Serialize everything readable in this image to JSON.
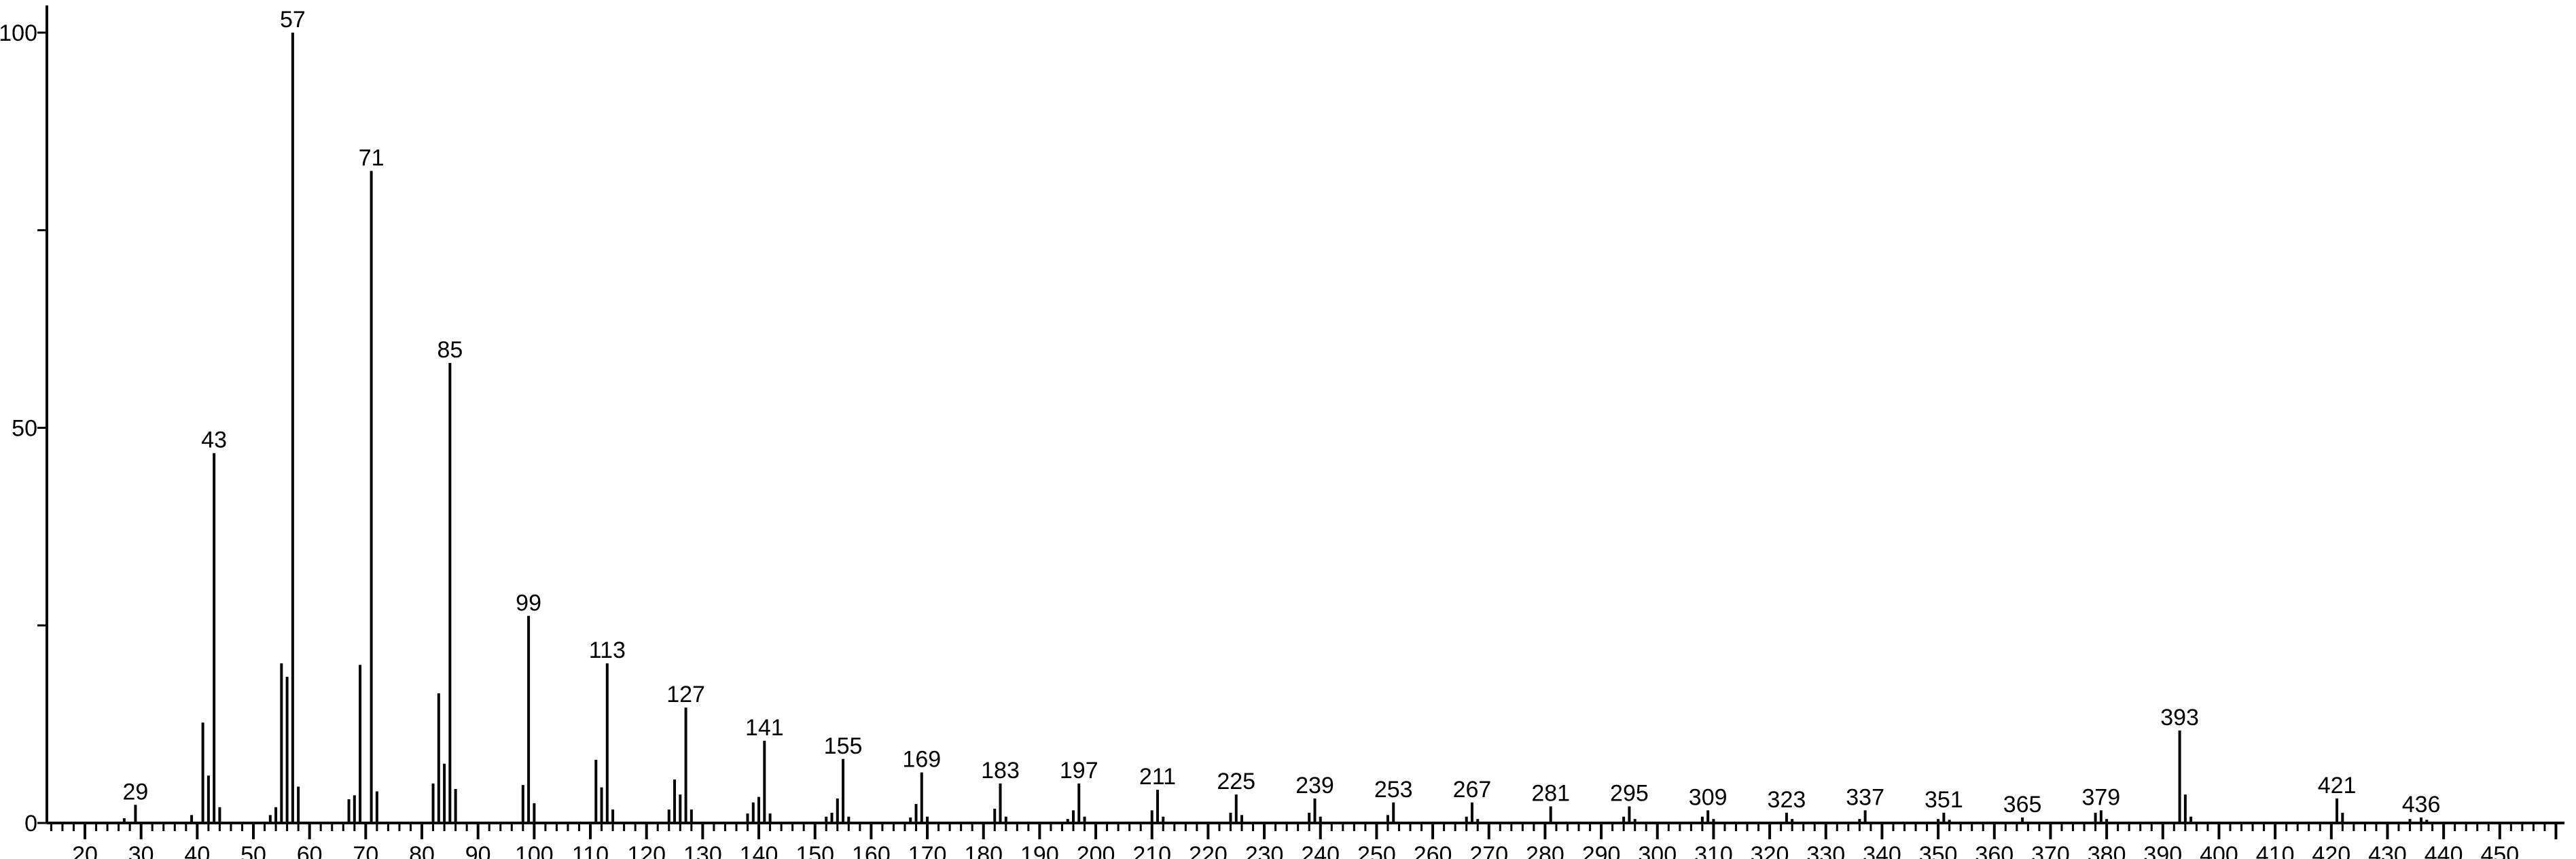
{
  "chart_data": {
    "type": "bar",
    "title": "",
    "xlabel": "",
    "ylabel": "",
    "xlim": [
      12,
      460
    ],
    "ylim": [
      0,
      100
    ],
    "x_ticks": [
      20,
      30,
      40,
      50,
      60,
      70,
      80,
      90,
      100,
      110,
      120,
      130,
      140,
      150,
      160,
      170,
      180,
      190,
      200,
      210,
      220,
      230,
      240,
      250,
      260,
      270,
      280,
      290,
      300,
      310,
      320,
      330,
      340,
      350,
      360,
      370,
      380,
      390,
      400,
      410,
      420,
      430,
      440,
      450
    ],
    "x_minor_step": 2,
    "y_ticks": [
      0,
      25,
      50,
      75,
      100
    ],
    "y_tick_labels": [
      "0",
      "",
      "50",
      "",
      "100"
    ],
    "grid": false,
    "bar_color": "#000000",
    "peaks": [
      {
        "mz": 27,
        "intensity": 0.6
      },
      {
        "mz": 29,
        "intensity": 2.3,
        "label": "29"
      },
      {
        "mz": 39,
        "intensity": 1.0
      },
      {
        "mz": 41,
        "intensity": 12.7
      },
      {
        "mz": 42,
        "intensity": 6.0
      },
      {
        "mz": 43,
        "intensity": 46.8,
        "label": "43"
      },
      {
        "mz": 44,
        "intensity": 2.0
      },
      {
        "mz": 53,
        "intensity": 1.0
      },
      {
        "mz": 54,
        "intensity": 2.0
      },
      {
        "mz": 55,
        "intensity": 20.2
      },
      {
        "mz": 56,
        "intensity": 18.5
      },
      {
        "mz": 57,
        "intensity": 100,
        "label": "57"
      },
      {
        "mz": 58,
        "intensity": 4.6
      },
      {
        "mz": 67,
        "intensity": 3.0
      },
      {
        "mz": 68,
        "intensity": 3.5
      },
      {
        "mz": 69,
        "intensity": 20.0
      },
      {
        "mz": 71,
        "intensity": 82.5,
        "label": "71"
      },
      {
        "mz": 72,
        "intensity": 4.0
      },
      {
        "mz": 82,
        "intensity": 5.0
      },
      {
        "mz": 83,
        "intensity": 16.4
      },
      {
        "mz": 84,
        "intensity": 7.5
      },
      {
        "mz": 85,
        "intensity": 58.2,
        "label": "85"
      },
      {
        "mz": 86,
        "intensity": 4.3
      },
      {
        "mz": 98,
        "intensity": 4.8
      },
      {
        "mz": 99,
        "intensity": 26.2,
        "label": "99"
      },
      {
        "mz": 100,
        "intensity": 2.5
      },
      {
        "mz": 111,
        "intensity": 8.0
      },
      {
        "mz": 112,
        "intensity": 4.5
      },
      {
        "mz": 113,
        "intensity": 20.2,
        "label": "113"
      },
      {
        "mz": 114,
        "intensity": 1.7
      },
      {
        "mz": 124,
        "intensity": 1.7
      },
      {
        "mz": 125,
        "intensity": 5.5
      },
      {
        "mz": 126,
        "intensity": 3.6
      },
      {
        "mz": 127,
        "intensity": 14.6,
        "label": "127"
      },
      {
        "mz": 128,
        "intensity": 1.7
      },
      {
        "mz": 138,
        "intensity": 1.2
      },
      {
        "mz": 139,
        "intensity": 2.6
      },
      {
        "mz": 140,
        "intensity": 3.3
      },
      {
        "mz": 141,
        "intensity": 10.4,
        "label": "141"
      },
      {
        "mz": 142,
        "intensity": 1.2
      },
      {
        "mz": 152,
        "intensity": 0.8
      },
      {
        "mz": 153,
        "intensity": 1.3
      },
      {
        "mz": 154,
        "intensity": 3.1
      },
      {
        "mz": 155,
        "intensity": 8.1,
        "label": "155"
      },
      {
        "mz": 156,
        "intensity": 0.8
      },
      {
        "mz": 167,
        "intensity": 0.7
      },
      {
        "mz": 168,
        "intensity": 2.4
      },
      {
        "mz": 169,
        "intensity": 6.4,
        "label": "169"
      },
      {
        "mz": 170,
        "intensity": 0.8
      },
      {
        "mz": 182,
        "intensity": 1.8
      },
      {
        "mz": 183,
        "intensity": 5.0,
        "label": "183"
      },
      {
        "mz": 184,
        "intensity": 0.8
      },
      {
        "mz": 195,
        "intensity": 0.5
      },
      {
        "mz": 196,
        "intensity": 1.6
      },
      {
        "mz": 197,
        "intensity": 5.0,
        "label": "197"
      },
      {
        "mz": 198,
        "intensity": 0.8
      },
      {
        "mz": 210,
        "intensity": 1.6
      },
      {
        "mz": 211,
        "intensity": 4.2,
        "label": "211"
      },
      {
        "mz": 212,
        "intensity": 0.8
      },
      {
        "mz": 224,
        "intensity": 1.3
      },
      {
        "mz": 225,
        "intensity": 3.6,
        "label": "225"
      },
      {
        "mz": 226,
        "intensity": 1.0
      },
      {
        "mz": 238,
        "intensity": 1.3
      },
      {
        "mz": 239,
        "intensity": 3.1,
        "label": "239"
      },
      {
        "mz": 240,
        "intensity": 0.8
      },
      {
        "mz": 252,
        "intensity": 1.0
      },
      {
        "mz": 253,
        "intensity": 2.6,
        "label": "253"
      },
      {
        "mz": 266,
        "intensity": 0.8
      },
      {
        "mz": 267,
        "intensity": 2.6,
        "label": "267"
      },
      {
        "mz": 268,
        "intensity": 0.5
      },
      {
        "mz": 281,
        "intensity": 2.1,
        "label": "281"
      },
      {
        "mz": 294,
        "intensity": 0.8
      },
      {
        "mz": 295,
        "intensity": 2.1,
        "label": "295"
      },
      {
        "mz": 296,
        "intensity": 0.5
      },
      {
        "mz": 308,
        "intensity": 0.8
      },
      {
        "mz": 309,
        "intensity": 1.6,
        "label": "309"
      },
      {
        "mz": 310,
        "intensity": 0.5
      },
      {
        "mz": 323,
        "intensity": 1.3,
        "label": "323"
      },
      {
        "mz": 324,
        "intensity": 0.5
      },
      {
        "mz": 336,
        "intensity": 0.5
      },
      {
        "mz": 337,
        "intensity": 1.6,
        "label": "337"
      },
      {
        "mz": 350,
        "intensity": 0.5
      },
      {
        "mz": 351,
        "intensity": 1.3,
        "label": "351"
      },
      {
        "mz": 352,
        "intensity": 0.4
      },
      {
        "mz": 365,
        "intensity": 0.7,
        "label": "365"
      },
      {
        "mz": 378,
        "intensity": 1.3
      },
      {
        "mz": 379,
        "intensity": 1.6,
        "label": "379"
      },
      {
        "mz": 380,
        "intensity": 0.5
      },
      {
        "mz": 393,
        "intensity": 11.7,
        "label": "393"
      },
      {
        "mz": 394,
        "intensity": 3.6
      },
      {
        "mz": 395,
        "intensity": 0.8
      },
      {
        "mz": 421,
        "intensity": 3.1,
        "label": "421"
      },
      {
        "mz": 422,
        "intensity": 1.3
      },
      {
        "mz": 434,
        "intensity": 0.5
      },
      {
        "mz": 436,
        "intensity": 0.7,
        "label": "436"
      },
      {
        "mz": 437,
        "intensity": 0.4
      }
    ]
  }
}
